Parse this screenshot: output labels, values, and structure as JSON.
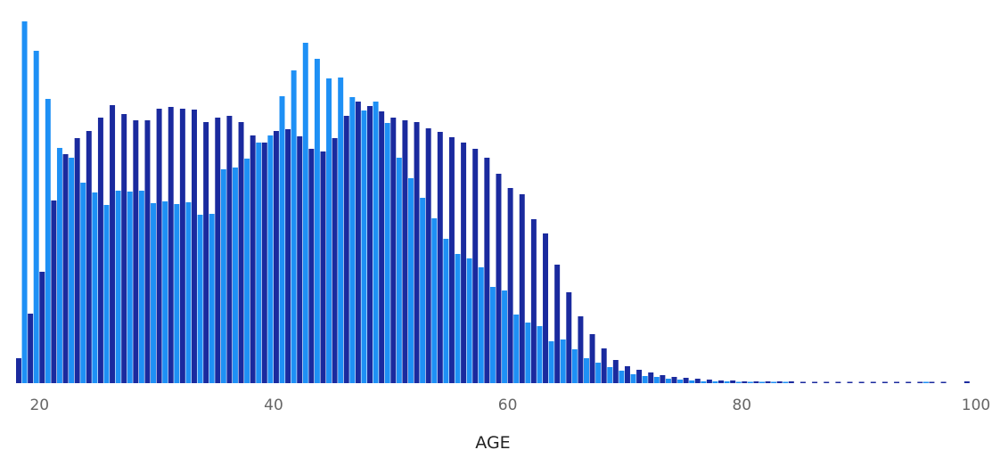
{
  "chart_data": {
    "type": "bar",
    "xlabel": "AGE",
    "ylabel": "",
    "title": "",
    "xlim": [
      18,
      100
    ],
    "x_ticks": [
      20,
      40,
      60,
      80,
      100
    ],
    "ylim": [
      0,
      410
    ],
    "grid": false,
    "legend": "none",
    "colors": {
      "series_a": "#1a2a9e",
      "series_b": "#1e90f5"
    },
    "x": [
      18,
      19,
      20,
      21,
      22,
      23,
      24,
      25,
      26,
      27,
      28,
      29,
      30,
      31,
      32,
      33,
      34,
      35,
      36,
      37,
      38,
      39,
      40,
      41,
      42,
      43,
      44,
      45,
      46,
      47,
      48,
      49,
      50,
      51,
      52,
      53,
      54,
      55,
      56,
      57,
      58,
      59,
      60,
      61,
      62,
      63,
      64,
      65,
      66,
      67,
      68,
      69,
      70,
      71,
      72,
      73,
      74,
      75,
      76,
      77,
      78,
      79,
      80,
      81,
      82,
      83,
      84,
      85,
      86,
      87,
      88,
      89,
      90,
      91,
      92,
      93,
      94,
      95,
      96,
      97,
      98,
      99
    ],
    "series": [
      {
        "color": "#1a2a9e",
        "values": [
          28,
          78,
          125,
          205,
          257,
          275,
          283,
          298,
          312,
          302,
          295,
          295,
          308,
          310,
          308,
          307,
          293,
          298,
          300,
          293,
          278,
          270,
          283,
          285,
          277,
          263,
          260,
          275,
          300,
          316,
          311,
          305,
          298,
          295,
          293,
          286,
          282,
          276,
          270,
          263,
          253,
          235,
          219,
          212,
          184,
          168,
          133,
          102,
          75,
          55,
          39,
          26,
          19,
          15,
          12,
          9,
          7,
          6,
          5,
          4,
          3,
          3,
          2,
          2,
          2,
          2,
          2,
          1,
          1,
          1,
          1,
          1,
          1,
          1,
          1,
          1,
          1,
          1,
          1,
          1,
          0,
          2
        ],
        "offset": 0
      },
      {
        "color": "#1e90f5",
        "values": [
          406,
          373,
          319,
          264,
          253,
          225,
          214,
          200,
          216,
          215,
          216,
          202,
          204,
          201,
          203,
          189,
          190,
          240,
          242,
          252,
          270,
          278,
          322,
          351,
          382,
          364,
          342,
          343,
          321,
          306,
          316,
          292,
          253,
          230,
          208,
          185,
          162,
          145,
          140,
          130,
          108,
          104,
          77,
          68,
          64,
          47,
          49,
          38,
          28,
          23,
          18,
          14,
          10,
          8,
          7,
          5,
          4,
          3,
          2,
          2,
          2,
          1,
          1,
          1,
          1,
          1,
          0,
          0,
          0,
          0,
          0,
          0,
          0,
          0,
          0,
          0,
          0,
          1,
          0,
          0,
          0,
          0
        ],
        "offset": 1
      }
    ]
  }
}
